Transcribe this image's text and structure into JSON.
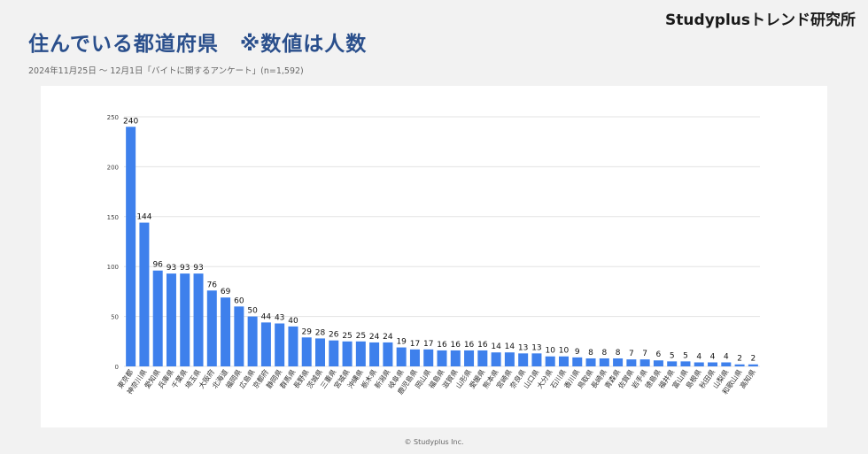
{
  "header": {
    "brand": "Studyplusトレンド研究所",
    "title": "住んでいる都道府県　※数値は人数",
    "subtitle": "2024年11月25日 〜 12月1日「バイトに関するアンケート」(n=1,592)"
  },
  "footer": {
    "copyright": "© Studyplus Inc."
  },
  "colors": {
    "bar": "#3e80ec",
    "grid": "#e3e3e3"
  },
  "chart_data": {
    "type": "bar",
    "title": "",
    "xlabel": "",
    "ylabel": "",
    "ylim": [
      0,
      250
    ],
    "yticks": [
      0,
      50,
      100,
      150,
      200,
      250
    ],
    "grid": true,
    "categories": [
      "東京都",
      "神奈川県",
      "愛知県",
      "兵庫県",
      "千葉県",
      "埼玉県",
      "大阪府",
      "北海道",
      "福岡県",
      "広島県",
      "京都府",
      "静岡県",
      "群馬県",
      "長野県",
      "茨城県",
      "三重県",
      "宮城県",
      "沖縄県",
      "栃木県",
      "新潟県",
      "岐阜県",
      "鹿児島県",
      "岡山県",
      "福島県",
      "滋賀県",
      "山形県",
      "愛媛県",
      "熊本県",
      "宮崎県",
      "奈良県",
      "山口県",
      "大分県",
      "石川県",
      "香川県",
      "鳥取県",
      "長崎県",
      "青森県",
      "佐賀県",
      "岩手県",
      "徳島県",
      "福井県",
      "富山県",
      "島根県",
      "秋田県",
      "山梨県",
      "和歌山県",
      "高知県"
    ],
    "values": [
      240,
      144,
      96,
      93,
      93,
      93,
      76,
      69,
      60,
      50,
      44,
      43,
      40,
      29,
      28,
      26,
      25,
      25,
      24,
      24,
      19,
      17,
      17,
      16,
      16,
      16,
      16,
      14,
      14,
      13,
      13,
      10,
      10,
      9,
      8,
      8,
      8,
      7,
      7,
      6,
      5,
      5,
      4,
      4,
      4,
      2,
      2
    ]
  }
}
